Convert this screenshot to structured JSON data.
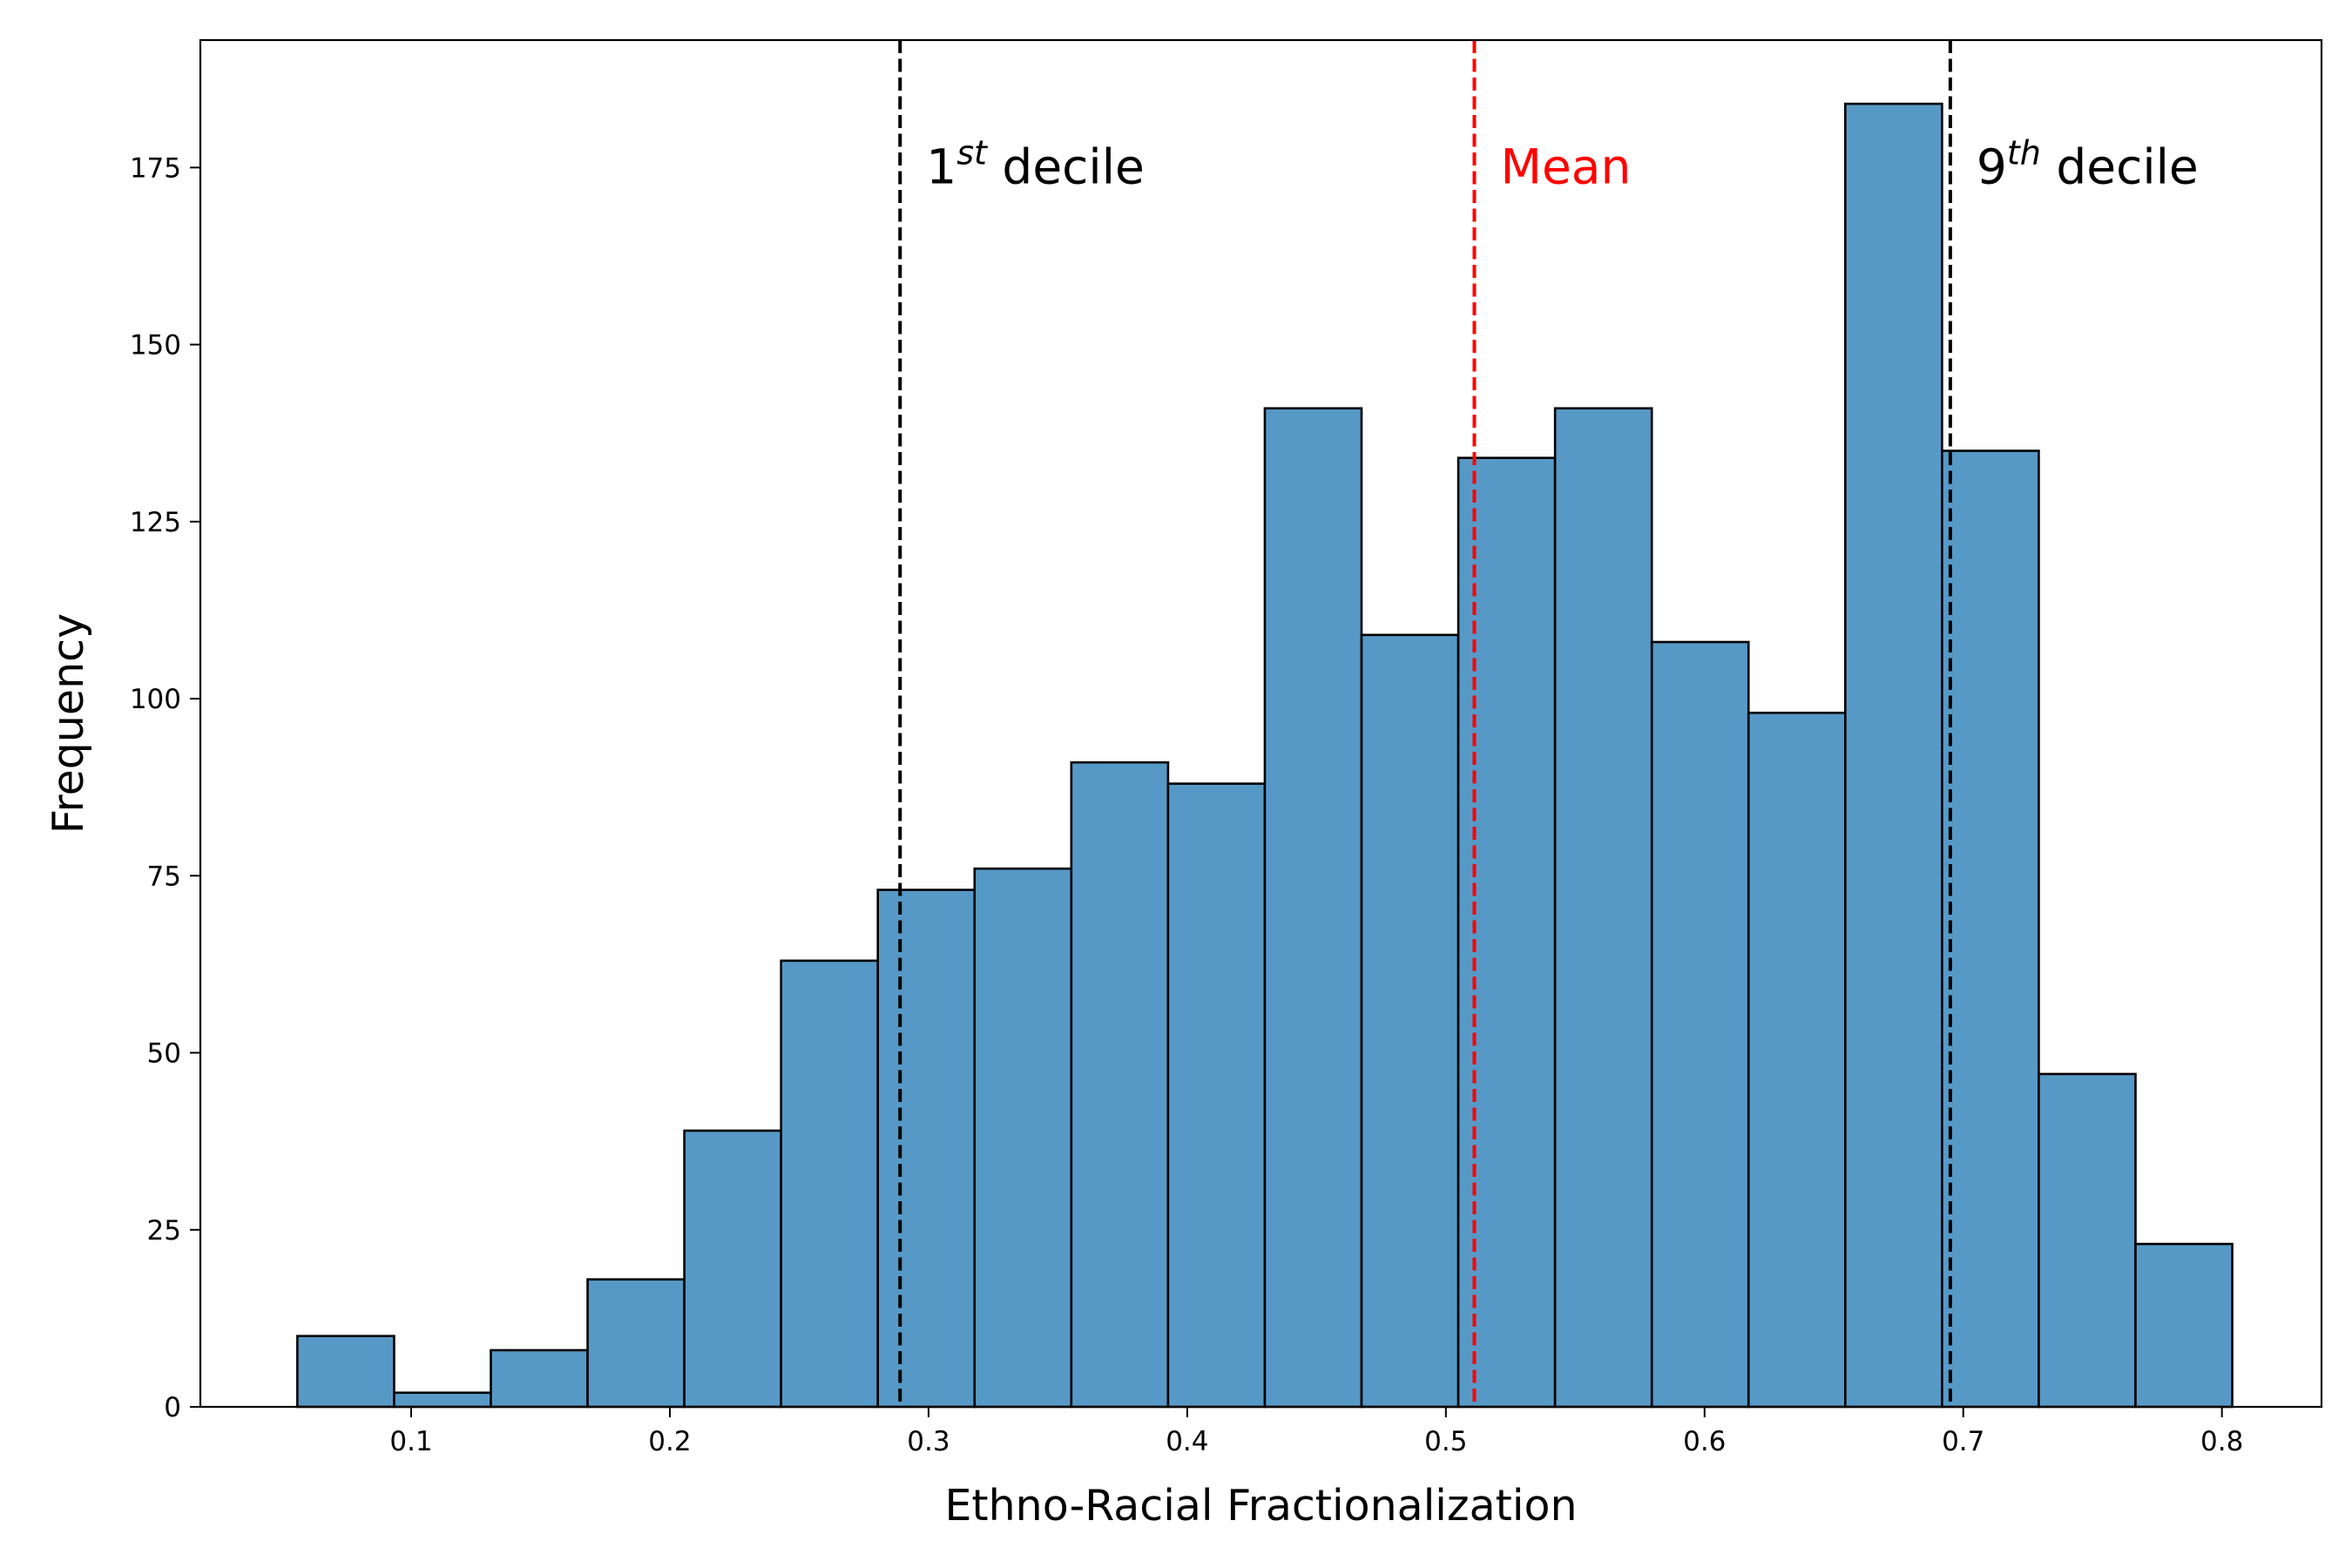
{
  "chart_data": {
    "type": "bar",
    "title": "",
    "xlabel": "Ethno-Racial Fractionalization",
    "ylabel": "Frequency",
    "xlim": [
      0.0185,
      0.8385
    ],
    "ylim": [
      0,
      193
    ],
    "grid": false,
    "bar_color": "#5799c6",
    "edge_color": "#000000",
    "bin_edges": [
      0.056,
      0.0934,
      0.1308,
      0.1682,
      0.2056,
      0.243,
      0.2804,
      0.3178,
      0.3552,
      0.3926,
      0.43,
      0.4674,
      0.5048,
      0.5422,
      0.5796,
      0.617,
      0.6544,
      0.6918,
      0.7292,
      0.7666,
      0.804
    ],
    "counts": [
      10,
      2,
      8,
      18,
      39,
      63,
      73,
      76,
      91,
      88,
      141,
      109,
      134,
      141,
      108,
      98,
      184,
      135,
      47,
      23
    ],
    "x_ticks": [
      {
        "value": 0.1,
        "label": "0.1"
      },
      {
        "value": 0.2,
        "label": "0.2"
      },
      {
        "value": 0.3,
        "label": "0.3"
      },
      {
        "value": 0.4,
        "label": "0.4"
      },
      {
        "value": 0.5,
        "label": "0.5"
      },
      {
        "value": 0.6,
        "label": "0.6"
      },
      {
        "value": 0.7,
        "label": "0.7"
      },
      {
        "value": 0.8,
        "label": "0.8"
      }
    ],
    "y_ticks": [
      {
        "value": 0,
        "label": "0"
      },
      {
        "value": 25,
        "label": "25"
      },
      {
        "value": 50,
        "label": "50"
      },
      {
        "value": 75,
        "label": "75"
      },
      {
        "value": 100,
        "label": "100"
      },
      {
        "value": 125,
        "label": "125"
      },
      {
        "value": 150,
        "label": "150"
      },
      {
        "value": 175,
        "label": "175"
      }
    ],
    "reference_lines": [
      {
        "id": "decile1",
        "x": 0.289,
        "color": "#000000",
        "label_base": "1",
        "label_sup": "st",
        "label_rest": " decile"
      },
      {
        "id": "mean",
        "x": 0.511,
        "color": "#ff0000",
        "label_base": "Mean",
        "label_sup": "",
        "label_rest": ""
      },
      {
        "id": "decile9",
        "x": 0.695,
        "color": "#000000",
        "label_base": "9",
        "label_sup": "th",
        "label_rest": " decile"
      }
    ],
    "annotation_y": 175
  }
}
